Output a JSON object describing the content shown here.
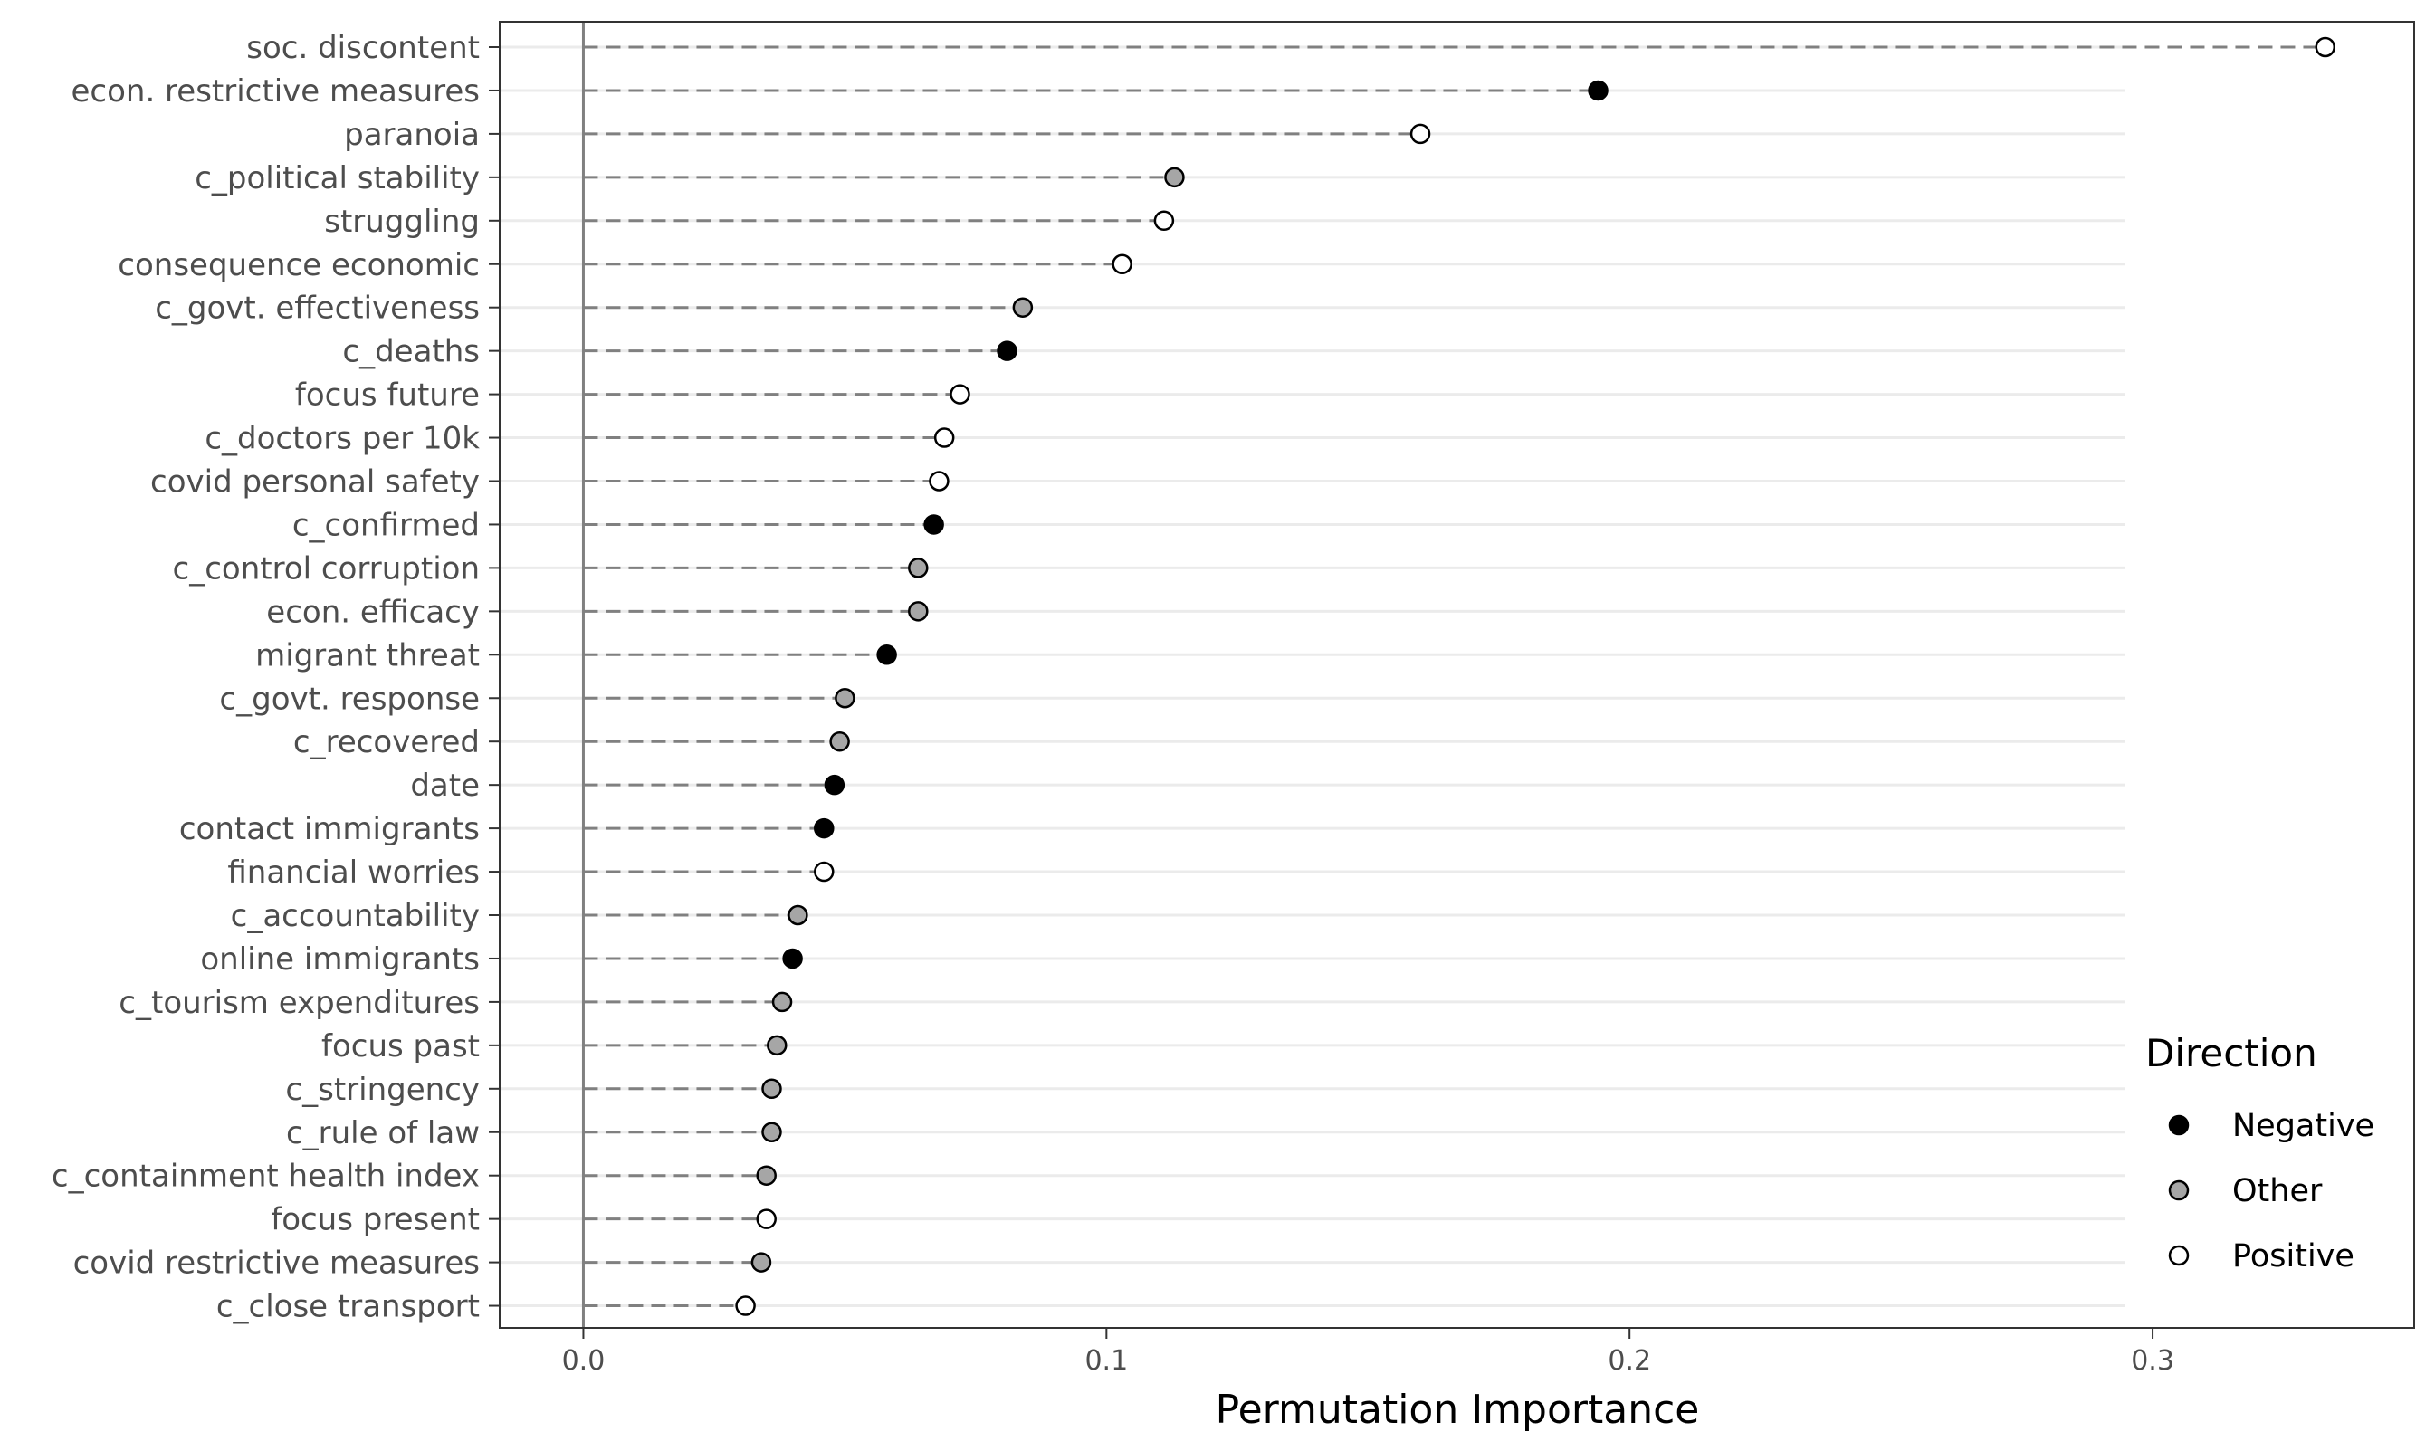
{
  "chart_data": {
    "type": "scatter",
    "xlabel": "Permutation Importance",
    "ylabel": "",
    "xlim": [
      -0.016,
      0.35
    ],
    "xticks": [
      0.0,
      0.1,
      0.2,
      0.3
    ],
    "xtick_labels": [
      "0.0",
      "0.1",
      "0.2",
      "0.3"
    ],
    "grid": true,
    "legend": {
      "title": "Direction",
      "placement": "bottom-right",
      "entries": [
        {
          "label": "Negative",
          "color": "#000000"
        },
        {
          "label": "Other",
          "color": "#a6a6a6"
        },
        {
          "label": "Positive",
          "color": "#ffffff"
        }
      ]
    },
    "points": [
      {
        "label": "soc. discontent",
        "value": 0.333,
        "direction": "Positive"
      },
      {
        "label": "econ. restrictive measures",
        "value": 0.194,
        "direction": "Negative"
      },
      {
        "label": "paranoia",
        "value": 0.16,
        "direction": "Positive"
      },
      {
        "label": "c_political stability",
        "value": 0.113,
        "direction": "Other"
      },
      {
        "label": "struggling",
        "value": 0.111,
        "direction": "Positive"
      },
      {
        "label": "consequence economic",
        "value": 0.103,
        "direction": "Positive"
      },
      {
        "label": "c_govt. effectiveness",
        "value": 0.084,
        "direction": "Other"
      },
      {
        "label": "c_deaths",
        "value": 0.081,
        "direction": "Negative"
      },
      {
        "label": "focus future",
        "value": 0.072,
        "direction": "Positive"
      },
      {
        "label": "c_doctors per 10k",
        "value": 0.069,
        "direction": "Positive"
      },
      {
        "label": "covid personal safety",
        "value": 0.068,
        "direction": "Positive"
      },
      {
        "label": "c_confirmed",
        "value": 0.067,
        "direction": "Negative"
      },
      {
        "label": "c_control corruption",
        "value": 0.064,
        "direction": "Other"
      },
      {
        "label": "econ. efficacy",
        "value": 0.064,
        "direction": "Other"
      },
      {
        "label": "migrant threat",
        "value": 0.058,
        "direction": "Negative"
      },
      {
        "label": "c_govt. response",
        "value": 0.05,
        "direction": "Other"
      },
      {
        "label": "c_recovered",
        "value": 0.049,
        "direction": "Other"
      },
      {
        "label": "date",
        "value": 0.048,
        "direction": "Negative"
      },
      {
        "label": "contact immigrants",
        "value": 0.046,
        "direction": "Negative"
      },
      {
        "label": "financial worries",
        "value": 0.046,
        "direction": "Positive"
      },
      {
        "label": "c_accountability",
        "value": 0.041,
        "direction": "Other"
      },
      {
        "label": "online immigrants",
        "value": 0.04,
        "direction": "Negative"
      },
      {
        "label": "c_tourism expenditures",
        "value": 0.038,
        "direction": "Other"
      },
      {
        "label": "focus past",
        "value": 0.037,
        "direction": "Other"
      },
      {
        "label": "c_stringency",
        "value": 0.036,
        "direction": "Other"
      },
      {
        "label": "c_rule of law",
        "value": 0.036,
        "direction": "Other"
      },
      {
        "label": "c_containment health index",
        "value": 0.035,
        "direction": "Other"
      },
      {
        "label": "focus present",
        "value": 0.035,
        "direction": "Positive"
      },
      {
        "label": "covid restrictive measures",
        "value": 0.034,
        "direction": "Other"
      },
      {
        "label": "c_close transport",
        "value": 0.031,
        "direction": "Positive"
      }
    ]
  }
}
